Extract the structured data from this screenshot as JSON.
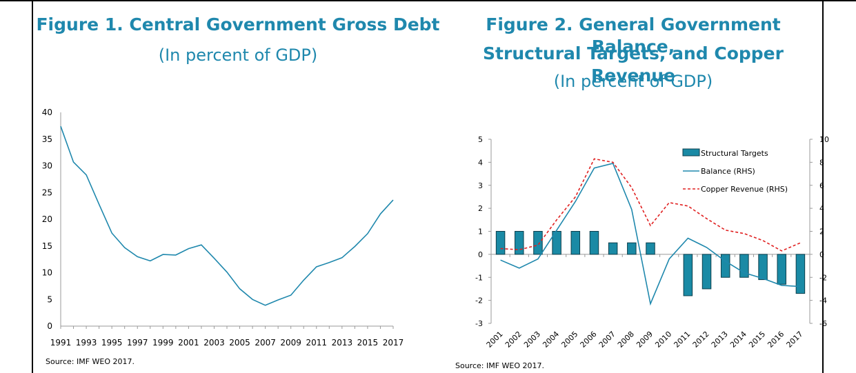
{
  "figure1": {
    "title": "Figure 1. Central Government Gross Debt",
    "subtitle": "(In percent of GDP)",
    "source": "Source: IMF WEO 2017."
  },
  "figure2": {
    "title_line1": "Figure 2. General Government Balance,",
    "title_line2": "Structural Targets, and Copper Revenue",
    "subtitle": "(In percent of GDP)",
    "source": "Source: IMF WEO 2017."
  },
  "colors": {
    "title": "#1f88ad",
    "line": "#1f88ad",
    "bar": "#1a8aa5",
    "copper": "#e02020"
  },
  "chart_data": [
    {
      "type": "line",
      "title": "Figure 1. Central Government Gross Debt",
      "subtitle": "(In percent of GDP)",
      "x": [
        1991,
        1992,
        1993,
        1994,
        1995,
        1996,
        1997,
        1998,
        1999,
        2000,
        2001,
        2002,
        2003,
        2004,
        2005,
        2006,
        2007,
        2008,
        2009,
        2010,
        2011,
        2012,
        2013,
        2014,
        2015,
        2016,
        2017
      ],
      "x_tick_labels": [
        "1991",
        "1993",
        "1995",
        "1997",
        "1999",
        "2001",
        "2003",
        "2005",
        "2007",
        "2009",
        "2011",
        "2013",
        "2015",
        "2017"
      ],
      "series": [
        {
          "values": [
            37.4,
            30.7,
            28.3,
            22.8,
            17.4,
            14.7,
            13.0,
            12.2,
            13.4,
            13.3,
            14.5,
            15.2,
            12.7,
            10.1,
            7.0,
            5.0,
            3.9,
            4.9,
            5.8,
            8.6,
            11.1,
            11.9,
            12.8,
            14.9,
            17.3,
            21.0,
            23.6
          ]
        }
      ],
      "ylim": [
        0,
        40
      ],
      "yticks": [
        0,
        5,
        10,
        15,
        20,
        25,
        30,
        35,
        40
      ],
      "grid": false,
      "source": "Source: IMF WEO 2017."
    },
    {
      "type": "bar",
      "title": "Figure 2. General Government Balance, Structural Targets, and Copper Revenue",
      "subtitle": "(In percent of GDP)",
      "categories": [
        "2001",
        "2002",
        "2003",
        "2004",
        "2005",
        "2006",
        "2007",
        "2008",
        "2009",
        "2010",
        "2011",
        "2012",
        "2013",
        "2014",
        "2015",
        "2016",
        "2017"
      ],
      "series": [
        {
          "name": "Structural Targets",
          "type": "bar",
          "axis": "left",
          "values": [
            1.0,
            1.0,
            1.0,
            1.0,
            1.0,
            1.0,
            0.5,
            0.5,
            0.5,
            null,
            -1.8,
            -1.5,
            -1.0,
            -1.0,
            -1.1,
            -1.3,
            -1.7
          ]
        },
        {
          "name": "Balance (RHS)",
          "type": "line",
          "axis": "right",
          "values": [
            -0.5,
            -1.2,
            -0.4,
            2.1,
            4.6,
            7.5,
            7.9,
            3.9,
            -4.3,
            -0.4,
            1.4,
            0.6,
            -0.6,
            -1.6,
            -2.1,
            -2.7,
            -2.8
          ]
        },
        {
          "name": "Copper Revenue (RHS)",
          "type": "line",
          "dash": true,
          "axis": "right",
          "values": [
            0.5,
            0.4,
            0.8,
            3.0,
            5.0,
            8.3,
            8.0,
            5.8,
            2.5,
            4.5,
            4.2,
            3.1,
            2.1,
            1.8,
            1.2,
            0.3,
            1.0
          ]
        }
      ],
      "ylim_left": [
        -3,
        5
      ],
      "yticks_left": [
        -3,
        -2,
        -1,
        0,
        1,
        2,
        3,
        4,
        5
      ],
      "ylim_right": [
        -6,
        10
      ],
      "yticks_right": [
        -6,
        -4,
        -2,
        0,
        2,
        4,
        6,
        8,
        10
      ],
      "legend": "top-right",
      "grid": false,
      "source": "Source: IMF WEO 2017."
    }
  ]
}
